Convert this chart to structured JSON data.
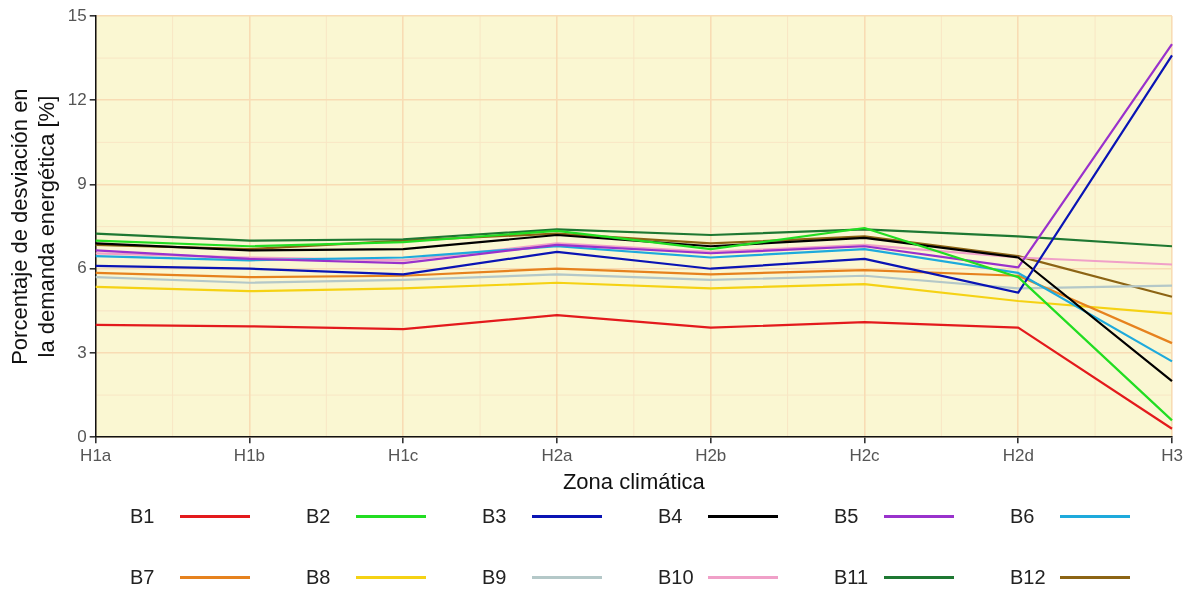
{
  "chart_data": {
    "type": "line",
    "xlabel": "Zona climática",
    "ylabel": "Porcentaje de desviación en\nla demanda energética [%]",
    "categories": [
      "H1a",
      "H1b",
      "H1c",
      "H2a",
      "H2b",
      "H2c",
      "H2d",
      "H3"
    ],
    "ylim": [
      0,
      15
    ],
    "yticks": [
      0,
      3,
      6,
      9,
      12,
      15
    ],
    "grid": true,
    "legend": "bottom",
    "marker": "none",
    "line_style": "solid",
    "series": [
      {
        "name": "B1",
        "color": "#e31a1c",
        "values": [
          4.0,
          3.95,
          3.85,
          4.35,
          3.9,
          4.1,
          3.9,
          0.3
        ]
      },
      {
        "name": "B2",
        "color": "#22dd22",
        "values": [
          7.0,
          6.8,
          6.95,
          7.35,
          6.7,
          7.45,
          5.7,
          0.6
        ]
      },
      {
        "name": "B3",
        "color": "#0a14b4",
        "values": [
          6.1,
          6.0,
          5.8,
          6.6,
          6.0,
          6.35,
          5.15,
          13.6
        ]
      },
      {
        "name": "B4",
        "color": "#000000",
        "values": [
          6.9,
          6.65,
          6.7,
          7.2,
          6.8,
          7.1,
          6.4,
          2.0
        ]
      },
      {
        "name": "B5",
        "color": "#9932cc",
        "values": [
          6.65,
          6.35,
          6.2,
          6.85,
          6.55,
          6.8,
          6.05,
          14.0
        ]
      },
      {
        "name": "B6",
        "color": "#1eaadc",
        "values": [
          6.45,
          6.3,
          6.4,
          6.8,
          6.4,
          6.7,
          5.85,
          2.7
        ]
      },
      {
        "name": "B7",
        "color": "#e6821e",
        "values": [
          5.85,
          5.7,
          5.75,
          6.0,
          5.8,
          5.95,
          5.75,
          3.35
        ]
      },
      {
        "name": "B8",
        "color": "#f5d214",
        "values": [
          5.35,
          5.2,
          5.3,
          5.5,
          5.3,
          5.45,
          4.85,
          4.4
        ]
      },
      {
        "name": "B9",
        "color": "#b4c8c8",
        "values": [
          5.7,
          5.5,
          5.6,
          5.8,
          5.6,
          5.75,
          5.3,
          5.4
        ]
      },
      {
        "name": "B10",
        "color": "#f0a0c8",
        "values": [
          6.55,
          6.4,
          6.3,
          6.9,
          6.6,
          6.85,
          6.4,
          6.15
        ]
      },
      {
        "name": "B11",
        "color": "#1e7832",
        "values": [
          7.25,
          7.0,
          7.05,
          7.4,
          7.2,
          7.4,
          7.15,
          6.8
        ]
      },
      {
        "name": "B12",
        "color": "#8c6414",
        "values": [
          6.85,
          6.7,
          7.0,
          7.25,
          6.9,
          7.15,
          6.45,
          5.0
        ]
      }
    ]
  }
}
